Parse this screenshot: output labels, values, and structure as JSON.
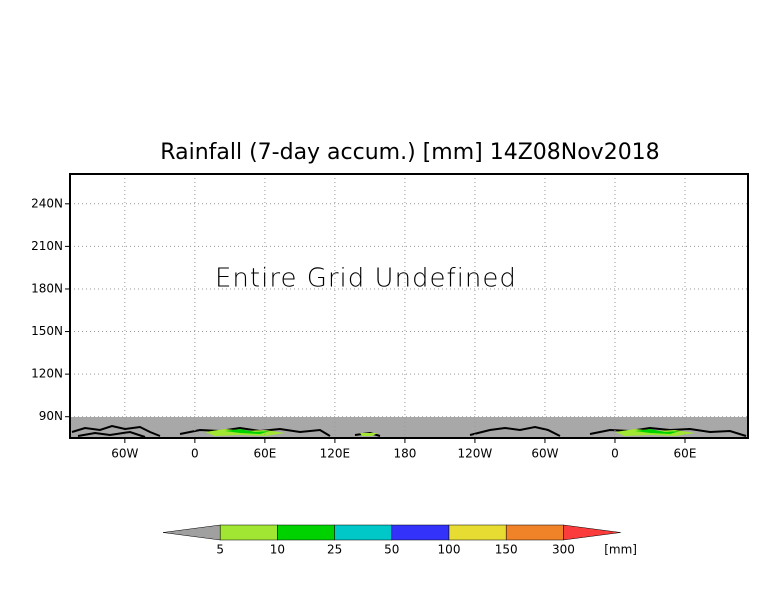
{
  "chart_data": {
    "type": "map",
    "title": "Rainfall (7-day accum.) [mm] 14Z08Nov2018",
    "annotation": "Entire Grid Undefined",
    "xlim": [
      -107,
      474
    ],
    "ylim": [
      75,
      261
    ],
    "xticks": [
      {
        "value": -60,
        "label": "60W"
      },
      0,
      {
        "value": 60,
        "label": "60E"
      },
      {
        "value": 120,
        "label": "120E"
      },
      180,
      {
        "value": 240,
        "label": "120W"
      },
      {
        "value": 300,
        "label": "60W"
      },
      {
        "value": 360,
        "label": "0"
      },
      {
        "value": 420,
        "label": "60E"
      }
    ],
    "yticks": [
      {
        "value": 90,
        "label": "90N"
      },
      {
        "value": 120,
        "label": "120N"
      },
      {
        "value": 150,
        "label": "150N"
      },
      {
        "value": 180,
        "label": "180N"
      },
      {
        "value": 210,
        "label": "210N"
      },
      {
        "value": 240,
        "label": "240N"
      }
    ],
    "grid": true,
    "colorbar": {
      "levels": [
        5,
        10,
        25,
        50,
        100,
        150,
        300
      ],
      "unit": "[mm]",
      "colors": [
        "#a0a0a0",
        "#a0e632",
        "#00d200",
        "#00c8c8",
        "#3232fa",
        "#e6dc32",
        "#f08228",
        "#fa3c3c"
      ]
    }
  }
}
